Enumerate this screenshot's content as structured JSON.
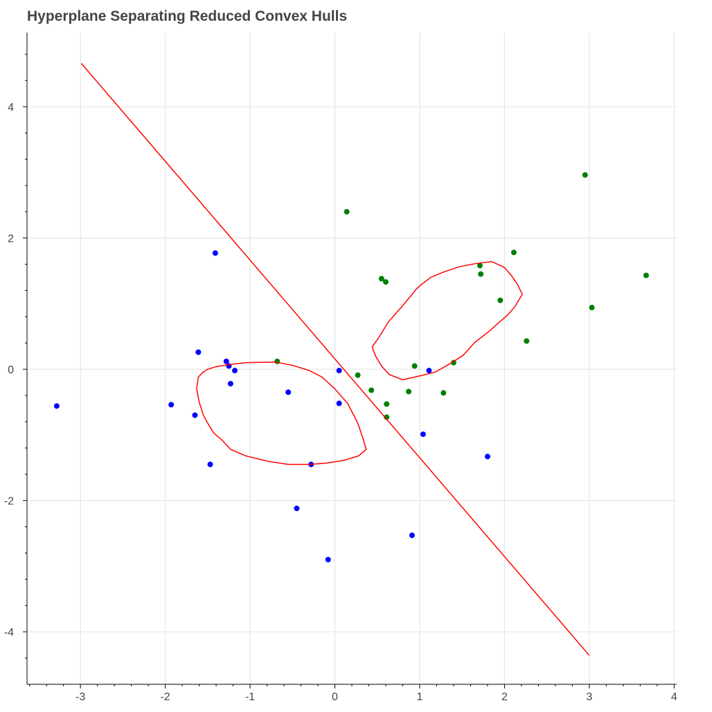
{
  "chart_data": {
    "type": "scatter",
    "title": "Hyperplane Separating Reduced Convex Hulls",
    "xlabel": "",
    "ylabel": "",
    "xlim": [
      -3.63,
      4.03
    ],
    "ylim": [
      -4.8,
      5.13
    ],
    "x_ticks": [
      -3,
      -2,
      -1,
      0,
      1,
      2,
      3,
      4
    ],
    "y_ticks": [
      -4,
      -2,
      0,
      2,
      4
    ],
    "grid": true,
    "legend": "none",
    "colors": {
      "class_a": "#0000ff",
      "class_b": "#008000",
      "hull": "#ff0000",
      "line": "#ff0000",
      "grid": "#e5e5e5",
      "axis": "#000000",
      "text": "#444444"
    },
    "series": [
      {
        "type": "scatter",
        "color": "#0000ff",
        "points": [
          [
            -3.28,
            -0.56
          ],
          [
            -1.41,
            1.77
          ],
          [
            -1.61,
            0.26
          ],
          [
            -1.28,
            0.12
          ],
          [
            -1.25,
            0.05
          ],
          [
            -1.18,
            -0.02
          ],
          [
            -1.23,
            -0.22
          ],
          [
            -1.93,
            -0.54
          ],
          [
            -1.65,
            -0.7
          ],
          [
            -1.47,
            -1.45
          ],
          [
            -0.55,
            -0.35
          ],
          [
            -0.28,
            -1.45
          ],
          [
            -0.45,
            -2.12
          ],
          [
            -0.08,
            -2.9
          ],
          [
            0.05,
            -0.02
          ],
          [
            0.05,
            -0.52
          ],
          [
            1.11,
            -0.02
          ],
          [
            1.04,
            -0.99
          ],
          [
            1.8,
            -1.33
          ],
          [
            0.91,
            -2.53
          ]
        ]
      },
      {
        "type": "scatter",
        "color": "#008000",
        "points": [
          [
            0.14,
            2.4
          ],
          [
            0.55,
            1.38
          ],
          [
            0.6,
            1.33
          ],
          [
            1.71,
            1.58
          ],
          [
            1.72,
            1.45
          ],
          [
            2.11,
            1.78
          ],
          [
            1.95,
            1.05
          ],
          [
            2.95,
            2.96
          ],
          [
            3.67,
            1.43
          ],
          [
            3.03,
            0.94
          ],
          [
            2.26,
            0.43
          ],
          [
            1.4,
            0.1
          ],
          [
            0.94,
            0.05
          ],
          [
            -0.68,
            0.12
          ],
          [
            0.27,
            -0.09
          ],
          [
            0.43,
            -0.32
          ],
          [
            0.61,
            -0.53
          ],
          [
            0.61,
            -0.73
          ],
          [
            0.87,
            -0.34
          ],
          [
            1.28,
            -0.36
          ]
        ]
      },
      {
        "type": "polygon",
        "color": "#ff0000",
        "points": [
          [
            -1.61,
            -0.12
          ],
          [
            -1.56,
            -0.05
          ],
          [
            -1.5,
            0.0
          ],
          [
            -1.4,
            0.04
          ],
          [
            -1.25,
            0.07
          ],
          [
            -1.05,
            0.1
          ],
          [
            -0.7,
            0.11
          ],
          [
            -0.5,
            0.06
          ],
          [
            -0.3,
            -0.02
          ],
          [
            -0.15,
            -0.12
          ],
          [
            0.0,
            -0.3
          ],
          [
            0.15,
            -0.52
          ],
          [
            0.27,
            -0.82
          ],
          [
            0.33,
            -1.05
          ],
          [
            0.37,
            -1.22
          ],
          [
            0.28,
            -1.32
          ],
          [
            0.1,
            -1.39
          ],
          [
            -0.1,
            -1.43
          ],
          [
            -0.3,
            -1.45
          ],
          [
            -0.55,
            -1.45
          ],
          [
            -0.8,
            -1.4
          ],
          [
            -1.05,
            -1.32
          ],
          [
            -1.23,
            -1.22
          ],
          [
            -1.33,
            -1.08
          ],
          [
            -1.43,
            -0.97
          ],
          [
            -1.5,
            -0.82
          ],
          [
            -1.55,
            -0.7
          ],
          [
            -1.6,
            -0.5
          ],
          [
            -1.63,
            -0.3
          ]
        ]
      },
      {
        "type": "polygon",
        "color": "#ff0000",
        "points": [
          [
            0.44,
            0.34
          ],
          [
            0.5,
            0.45
          ],
          [
            0.55,
            0.55
          ],
          [
            0.63,
            0.72
          ],
          [
            0.8,
            0.97
          ],
          [
            0.96,
            1.22
          ],
          [
            1.01,
            1.28
          ],
          [
            1.13,
            1.4
          ],
          [
            1.26,
            1.47
          ],
          [
            1.46,
            1.56
          ],
          [
            1.66,
            1.61
          ],
          [
            1.85,
            1.64
          ],
          [
            2.0,
            1.55
          ],
          [
            2.08,
            1.43
          ],
          [
            2.15,
            1.3
          ],
          [
            2.21,
            1.14
          ],
          [
            2.12,
            0.95
          ],
          [
            2.04,
            0.83
          ],
          [
            1.95,
            0.73
          ],
          [
            1.82,
            0.58
          ],
          [
            1.65,
            0.41
          ],
          [
            1.51,
            0.21
          ],
          [
            1.35,
            0.08
          ],
          [
            1.19,
            -0.04
          ],
          [
            1.04,
            -0.09
          ],
          [
            0.8,
            -0.16
          ],
          [
            0.64,
            -0.08
          ],
          [
            0.55,
            0.05
          ],
          [
            0.48,
            0.2
          ]
        ]
      },
      {
        "type": "line",
        "color": "#ff0000",
        "points": [
          [
            -2.99,
            4.66
          ],
          [
            3.0,
            -4.36
          ]
        ]
      }
    ]
  }
}
